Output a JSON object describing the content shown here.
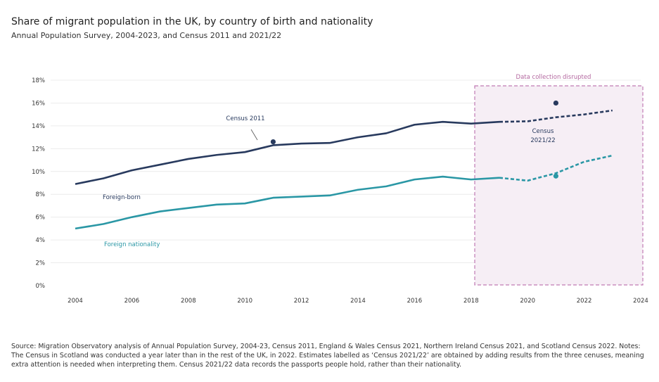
{
  "chart_data": {
    "type": "line",
    "title": "Share of migrant population in the UK, by country of birth and nationality",
    "subtitle": "Annual Population Survey, 2004-2023, and Census 2011 and 2021/22",
    "xticks": [
      "2004",
      "2006",
      "2008",
      "2010",
      "2012",
      "2014",
      "2016",
      "2018",
      "2020",
      "2022",
      "2024"
    ],
    "yticks": [
      "0%",
      "2%",
      "4%",
      "6%",
      "8%",
      "10%",
      "12%",
      "14%",
      "16%",
      "18%"
    ],
    "ylim": [
      0,
      18
    ],
    "grid": true,
    "series": [
      {
        "name": "Foreign-born",
        "color": "#283a5e",
        "x": [
          2004,
          2005,
          2006,
          2007,
          2008,
          2009,
          2010,
          2011,
          2012,
          2013,
          2014,
          2015,
          2016,
          2017,
          2018,
          2019
        ],
        "values": [
          8.9,
          9.4,
          10.1,
          10.6,
          11.1,
          11.45,
          11.7,
          12.3,
          12.45,
          12.5,
          13.0,
          13.35,
          14.1,
          14.35,
          14.2,
          14.35
        ],
        "projected_x": [
          2019,
          2020,
          2021,
          2022,
          2023
        ],
        "projected_values": [
          14.35,
          14.4,
          14.75,
          15.0,
          15.35
        ]
      },
      {
        "name": "Foreign nationality",
        "color": "#2a97a5",
        "x": [
          2004,
          2005,
          2006,
          2007,
          2008,
          2009,
          2010,
          2011,
          2012,
          2013,
          2014,
          2015,
          2016,
          2017,
          2018,
          2019
        ],
        "values": [
          5.0,
          5.4,
          6.0,
          6.5,
          6.8,
          7.1,
          7.2,
          7.7,
          7.8,
          7.9,
          8.4,
          8.7,
          9.3,
          9.55,
          9.3,
          9.45
        ],
        "projected_x": [
          2019,
          2020,
          2021,
          2022,
          2023
        ],
        "projected_values": [
          9.45,
          9.2,
          9.85,
          10.85,
          11.4
        ]
      }
    ],
    "census_points": [
      {
        "label": "Census 2011",
        "x": 2011,
        "value": 12.6,
        "series": "Foreign-born"
      },
      {
        "label": "Census 2021/22",
        "x": 2021,
        "value": 16.0,
        "series": "Foreign-born"
      },
      {
        "label": "",
        "x": 2021,
        "value": 9.6,
        "series": "Foreign nationality"
      }
    ],
    "annotations": {
      "disrupted": "Data collection disrupted",
      "census_2011": "Census 2011",
      "census_2021_line1": "Census",
      "census_2021_line2": "2021/22",
      "foreign_born": "Foreign-born",
      "foreign_nationality": "Foreign nationality"
    }
  },
  "footer": "Source: Migration Observatory analysis of Annual Population Survey, 2004-23, Census 2011, England & Wales Census 2021, Northern Ireland Census 2021, and Scotland Census 2022. Notes: The Census in Scotland was conducted a year later than in the rest of the UK, in 2022. Estimates labelled as ‘Census 2021/22’ are obtained by adding results from the three cenuses, meaning extra attention is needed when interpreting them. Census 2021/22 data records the passports people hold, rather than their nationality."
}
